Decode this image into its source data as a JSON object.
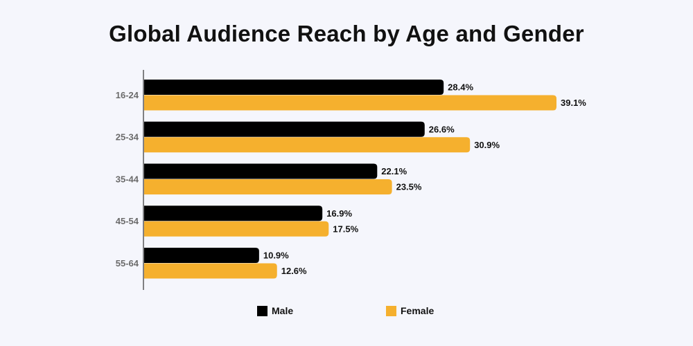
{
  "chart_data": {
    "type": "bar",
    "orientation": "horizontal",
    "title": "Global Audience Reach by Age and Gender",
    "categories": [
      "16-24",
      "25-34",
      "35-44",
      "45-54",
      "55-64"
    ],
    "series": [
      {
        "name": "Male",
        "color": "#000000",
        "values": [
          28.4,
          26.6,
          22.1,
          16.9,
          10.9
        ],
        "labels": [
          "28.4%",
          "26.6%",
          "22.1%",
          "16.9%",
          "10.9%"
        ]
      },
      {
        "name": "Female",
        "color": "#f5b02e",
        "values": [
          39.1,
          30.9,
          23.5,
          17.5,
          12.6
        ],
        "labels": [
          "39.1%",
          "30.9%",
          "23.5%",
          "17.5%",
          "12.6%"
        ]
      }
    ],
    "xlim": [
      0,
      40
    ],
    "grid": false,
    "legend_position": "bottom"
  }
}
